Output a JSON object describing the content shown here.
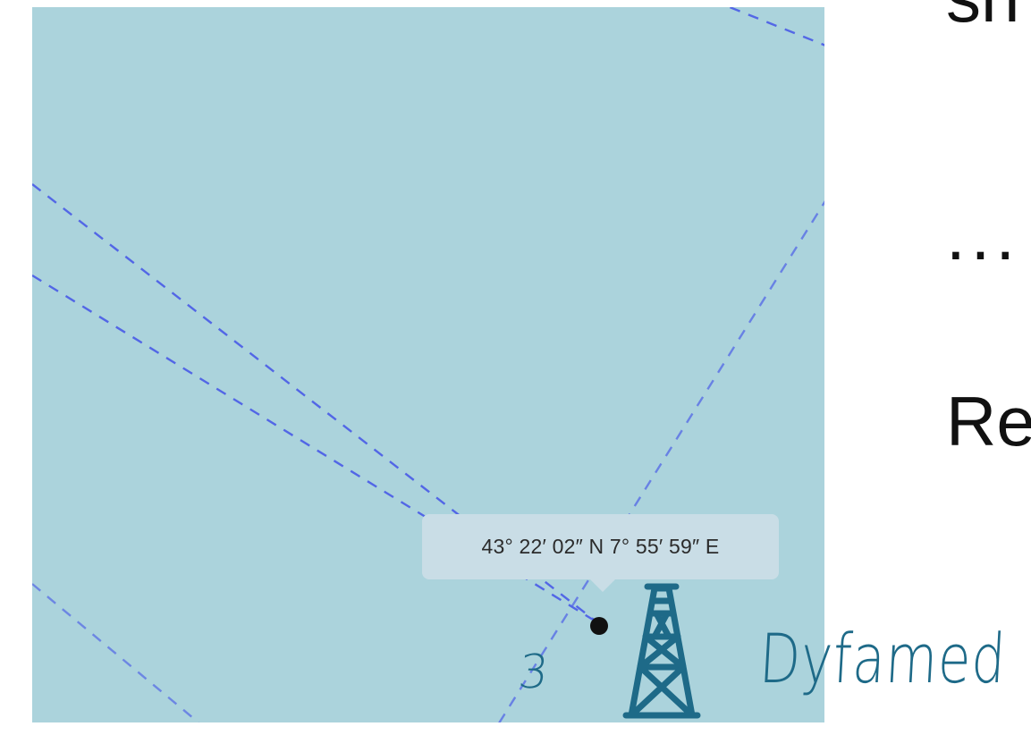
{
  "map": {
    "water_color": "#abd3dc",
    "track_color": "#4353e8",
    "marker_color": "#111111",
    "tooltip": {
      "coordinates": "43° 22′ 02″ N 7° 55′ 59″ E",
      "background": "#c9dde6"
    }
  },
  "slide": {
    "top_text": "sn",
    "ellipsis": "...",
    "re_text": "Re"
  },
  "station": {
    "number": "3",
    "name": "Dyfamed",
    "icon": "oil-rig-tower-icon",
    "color": "#1e6a88"
  }
}
